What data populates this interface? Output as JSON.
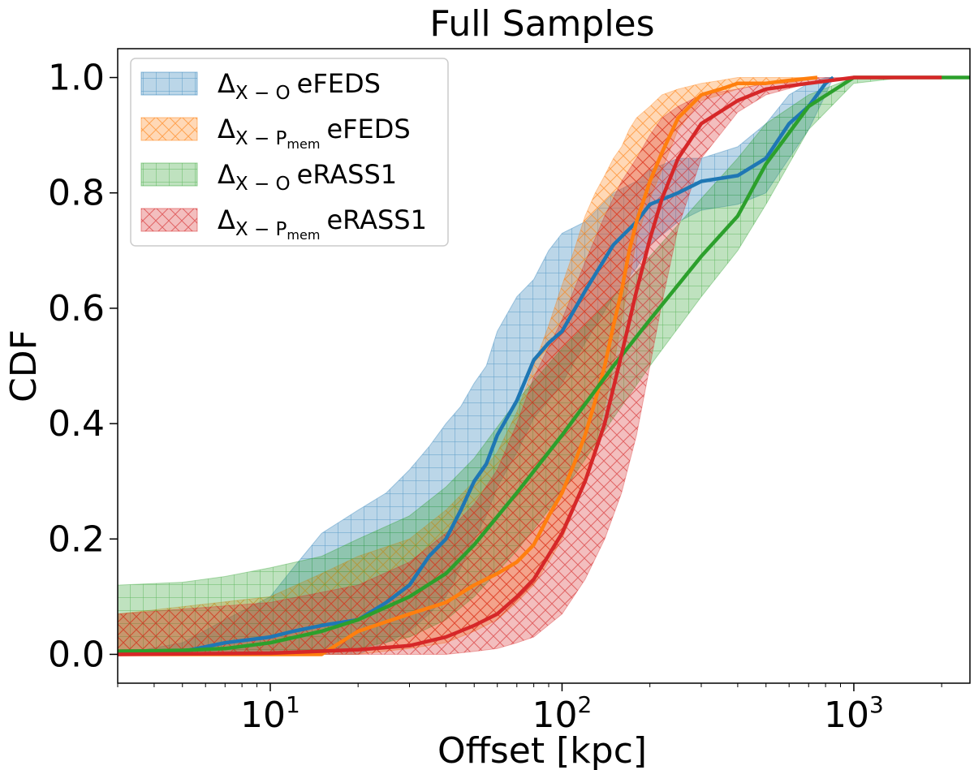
{
  "chart_data": {
    "type": "line",
    "title": "Full Samples",
    "xlabel": "Offset [kpc]",
    "ylabel": "CDF",
    "xscale": "log",
    "xlim": [
      3,
      2500
    ],
    "ylim": [
      -0.05,
      1.05
    ],
    "x_ticks": [
      10,
      100,
      1000
    ],
    "x_tick_labels": [
      {
        "base": "10",
        "exp": "1"
      },
      {
        "base": "10",
        "exp": "2"
      },
      {
        "base": "10",
        "exp": "3"
      }
    ],
    "y_ticks": [
      "0.0",
      "0.2",
      "0.4",
      "0.6",
      "0.8",
      "1.0"
    ],
    "grid": false,
    "legend_position": "top-left",
    "series": [
      {
        "name": "Δ_{X−O} eFEDS",
        "legend": {
          "delta": "Δ",
          "sub": "X − O",
          "subsub": "",
          "label": "eFEDS"
        },
        "color": "#1f77b4",
        "hatch": "grid",
        "x": [
          3,
          5,
          7,
          10,
          12,
          15,
          20,
          25,
          30,
          35,
          40,
          45,
          50,
          55,
          60,
          70,
          80,
          90,
          100,
          120,
          150,
          180,
          200,
          250,
          300,
          400,
          500,
          600,
          700,
          800,
          850
        ],
        "y": [
          0.0,
          0.005,
          0.02,
          0.03,
          0.04,
          0.05,
          0.06,
          0.09,
          0.12,
          0.17,
          0.2,
          0.25,
          0.3,
          0.33,
          0.38,
          0.44,
          0.51,
          0.54,
          0.56,
          0.63,
          0.71,
          0.75,
          0.78,
          0.8,
          0.82,
          0.83,
          0.86,
          0.92,
          0.95,
          0.99,
          1.0
        ],
        "lower": [
          0.0,
          0.0,
          0.0,
          0.0,
          0.0,
          0.0,
          0.0,
          0.02,
          0.04,
          0.07,
          0.1,
          0.15,
          0.2,
          0.24,
          0.29,
          0.35,
          0.41,
          0.44,
          0.47,
          0.54,
          0.62,
          0.67,
          0.71,
          0.75,
          0.77,
          0.78,
          0.8,
          0.86,
          0.91,
          0.97,
          1.0
        ],
        "upper": [
          0.0,
          0.02,
          0.06,
          0.1,
          0.15,
          0.21,
          0.25,
          0.28,
          0.32,
          0.36,
          0.4,
          0.43,
          0.47,
          0.5,
          0.56,
          0.62,
          0.65,
          0.7,
          0.73,
          0.75,
          0.8,
          0.82,
          0.84,
          0.86,
          0.86,
          0.88,
          0.92,
          0.97,
          0.99,
          1.0,
          1.0
        ]
      },
      {
        "name": "Δ_{X−Pmem} eFEDS",
        "legend": {
          "delta": "Δ",
          "sub": "X − P",
          "subsub": "mem",
          "label": "eFEDS"
        },
        "color": "#ff7f0e",
        "hatch": "diag",
        "x": [
          3,
          10,
          15,
          20,
          30,
          40,
          50,
          60,
          70,
          80,
          90,
          100,
          110,
          120,
          130,
          140,
          150,
          160,
          170,
          180,
          200,
          220,
          250,
          300,
          350,
          400,
          500,
          600,
          750
        ],
        "y": [
          0.0,
          0.0,
          0.0,
          0.04,
          0.07,
          0.09,
          0.12,
          0.14,
          0.16,
          0.19,
          0.24,
          0.28,
          0.33,
          0.38,
          0.44,
          0.5,
          0.57,
          0.63,
          0.7,
          0.75,
          0.82,
          0.87,
          0.93,
          0.97,
          0.98,
          0.99,
          0.99,
          0.995,
          1.0
        ],
        "lower": [
          0.0,
          0.0,
          0.0,
          0.0,
          0.01,
          0.02,
          0.04,
          0.06,
          0.09,
          0.12,
          0.16,
          0.2,
          0.25,
          0.3,
          0.36,
          0.43,
          0.5,
          0.58,
          0.65,
          0.72,
          0.79,
          0.84,
          0.91,
          0.96,
          0.97,
          0.98,
          0.99,
          0.99,
          1.0
        ],
        "upper": [
          0.07,
          0.1,
          0.14,
          0.17,
          0.2,
          0.25,
          0.3,
          0.35,
          0.42,
          0.5,
          0.57,
          0.64,
          0.7,
          0.76,
          0.8,
          0.83,
          0.86,
          0.88,
          0.91,
          0.93,
          0.95,
          0.97,
          0.98,
          0.99,
          0.995,
          1.0,
          1.0,
          1.0,
          1.0
        ]
      },
      {
        "name": "Δ_{X−O} eRASS1",
        "legend": {
          "delta": "Δ",
          "sub": "X − O",
          "subsub": "",
          "label": "eRASS1"
        },
        "color": "#2ca02c",
        "hatch": "grid",
        "x": [
          3,
          5,
          7,
          10,
          15,
          20,
          30,
          40,
          50,
          70,
          100,
          150,
          200,
          300,
          400,
          500,
          700,
          1000,
          1500,
          2500
        ],
        "y": [
          0.005,
          0.007,
          0.01,
          0.02,
          0.04,
          0.06,
          0.1,
          0.14,
          0.19,
          0.28,
          0.38,
          0.5,
          0.58,
          0.69,
          0.76,
          0.85,
          0.95,
          1.0,
          1.0,
          1.0
        ],
        "lower": [
          0.0,
          0.0,
          0.0,
          0.0,
          0.005,
          0.01,
          0.03,
          0.06,
          0.1,
          0.18,
          0.28,
          0.41,
          0.5,
          0.62,
          0.7,
          0.78,
          0.91,
          0.99,
          1.0,
          1.0
        ],
        "upper": [
          0.12,
          0.125,
          0.135,
          0.15,
          0.17,
          0.2,
          0.24,
          0.29,
          0.34,
          0.44,
          0.53,
          0.62,
          0.69,
          0.79,
          0.86,
          0.92,
          0.97,
          1.0,
          1.0,
          1.0
        ]
      },
      {
        "name": "Δ_{X−Pmem} eRASS1",
        "legend": {
          "delta": "Δ",
          "sub": "X − P",
          "subsub": "mem",
          "label": "eRASS1"
        },
        "color": "#d62728",
        "hatch": "diag",
        "x": [
          3,
          10,
          20,
          30,
          40,
          50,
          60,
          70,
          80,
          100,
          120,
          140,
          160,
          180,
          200,
          220,
          250,
          300,
          400,
          500,
          700,
          1000,
          2000
        ],
        "y": [
          0.0,
          0.002,
          0.008,
          0.015,
          0.03,
          0.05,
          0.07,
          0.1,
          0.13,
          0.21,
          0.3,
          0.4,
          0.52,
          0.63,
          0.72,
          0.79,
          0.86,
          0.92,
          0.96,
          0.98,
          0.99,
          1.0,
          1.0
        ],
        "lower": [
          0.0,
          0.0,
          0.0,
          0.0,
          0.0,
          0.005,
          0.01,
          0.02,
          0.03,
          0.07,
          0.13,
          0.2,
          0.28,
          0.38,
          0.5,
          0.61,
          0.74,
          0.86,
          0.94,
          0.97,
          0.99,
          1.0,
          1.0
        ],
        "upper": [
          0.07,
          0.09,
          0.12,
          0.16,
          0.21,
          0.26,
          0.32,
          0.4,
          0.48,
          0.58,
          0.68,
          0.76,
          0.82,
          0.86,
          0.9,
          0.93,
          0.95,
          0.97,
          0.98,
          0.99,
          1.0,
          1.0,
          1.0
        ]
      }
    ]
  }
}
